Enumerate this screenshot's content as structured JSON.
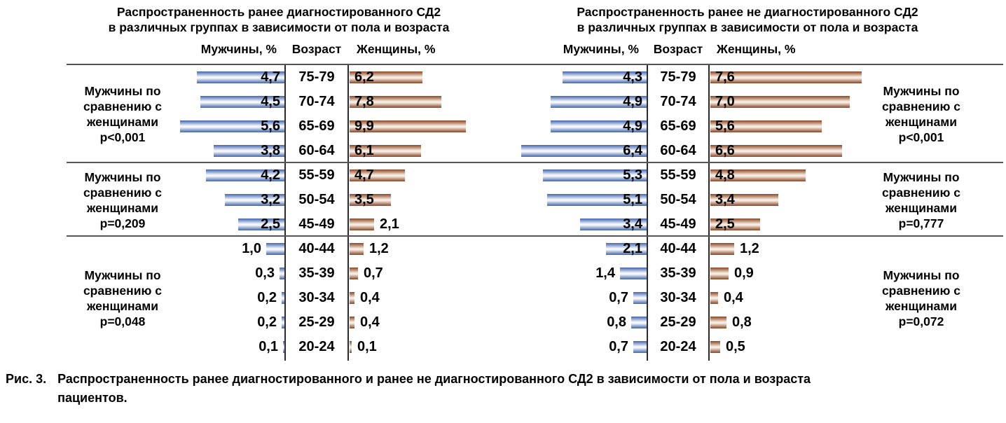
{
  "colors": {
    "male_bar_dark": "#4464ab",
    "male_bar_light": "#eff4fc",
    "female_bar_dark": "#8a4526",
    "female_bar_light": "#f4e7d9",
    "separator_line": "#555555",
    "axis_line": "#2b2b2b",
    "text": "#000000"
  },
  "chart_data": [
    {
      "type": "bar",
      "subtype": "population_pyramid",
      "title_lines": [
        "Распространенность ранее диагностированного СД2",
        "в различных группах в зависимости от пола и возраста"
      ],
      "columns": {
        "male": "Мужчины, %",
        "age": "Возраст",
        "female": "Женщины, %"
      },
      "legend_position": "left",
      "grid": false,
      "male_axis_max": 5.6,
      "female_axis_max": 9.9,
      "groups": [
        {
          "label": "Мужчины по сравнению с женщинами",
          "p_value": "p<0,001",
          "rows": [
            {
              "age": "75-79",
              "male": 4.7,
              "female": 6.2
            },
            {
              "age": "70-74",
              "male": 4.5,
              "female": 7.8
            },
            {
              "age": "65-69",
              "male": 5.6,
              "female": 9.9
            },
            {
              "age": "60-64",
              "male": 3.8,
              "female": 6.1
            }
          ]
        },
        {
          "label": "Мужчины по сравнению с женщинами",
          "p_value": "p=0,209",
          "rows": [
            {
              "age": "55-59",
              "male": 4.2,
              "female": 4.7
            },
            {
              "age": "50-54",
              "male": 3.2,
              "female": 3.5
            },
            {
              "age": "45-49",
              "male": 2.5,
              "female": 2.1
            }
          ]
        },
        {
          "label": "Мужчины по сравнению с женщинами",
          "p_value": "p=0,048",
          "rows": [
            {
              "age": "40-44",
              "male": 1.0,
              "female": 1.2
            },
            {
              "age": "35-39",
              "male": 0.3,
              "female": 0.7
            },
            {
              "age": "30-34",
              "male": 0.2,
              "female": 0.4
            },
            {
              "age": "25-29",
              "male": 0.2,
              "female": 0.4
            },
            {
              "age": "20-24",
              "male": 0.1,
              "female": 0.1
            }
          ]
        }
      ]
    },
    {
      "type": "bar",
      "subtype": "population_pyramid",
      "title_lines": [
        "Распространенность ранее не диагностированного СД2",
        "в различных группах в зависимости от пола и возраста"
      ],
      "columns": {
        "male": "Мужчины, %",
        "age": "Возраст",
        "female": "Женщины, %"
      },
      "legend_position": "right",
      "grid": false,
      "male_axis_max": 6.4,
      "female_axis_max": 7.6,
      "groups": [
        {
          "label": "Мужчины по сравнению с женщинами",
          "p_value": "p<0,001",
          "rows": [
            {
              "age": "75-79",
              "male": 4.3,
              "female": 7.6
            },
            {
              "age": "70-74",
              "male": 4.9,
              "female": 7.0
            },
            {
              "age": "65-69",
              "male": 4.9,
              "female": 5.6
            },
            {
              "age": "60-64",
              "male": 6.4,
              "female": 6.6
            }
          ]
        },
        {
          "label": "Мужчины по сравнению с женщинами",
          "p_value": "p=0,777",
          "rows": [
            {
              "age": "55-59",
              "male": 5.3,
              "female": 4.8
            },
            {
              "age": "50-54",
              "male": 5.1,
              "female": 3.4
            },
            {
              "age": "45-49",
              "male": 3.4,
              "female": 2.5
            }
          ]
        },
        {
          "label": "Мужчины по сравнению с женщинами",
          "p_value": "p=0,072",
          "rows": [
            {
              "age": "40-44",
              "male": 2.1,
              "female": 1.2
            },
            {
              "age": "35-39",
              "male": 1.4,
              "female": 0.9
            },
            {
              "age": "30-34",
              "male": 0.7,
              "female": 0.4
            },
            {
              "age": "25-29",
              "male": 0.8,
              "female": 0.8
            },
            {
              "age": "20-24",
              "male": 0.7,
              "female": 0.5
            }
          ]
        }
      ]
    }
  ],
  "caption": {
    "label": "Рис. 3.",
    "text": "Распространенность ранее диагностированного и ранее не диагностированного СД2 в зависимости от пола и возраста пациентов."
  }
}
